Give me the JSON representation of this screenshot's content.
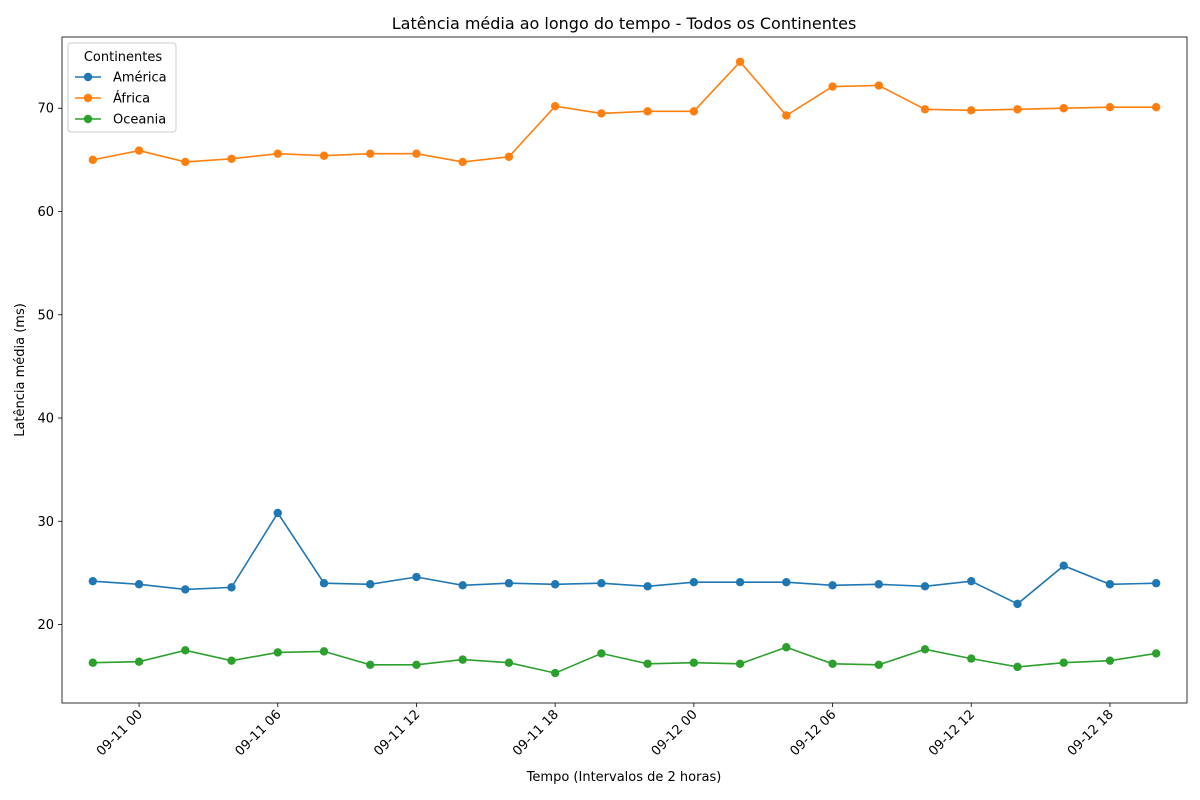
{
  "chart_data": {
    "type": "line",
    "title": "Latência média ao longo do tempo - Todos os Continentes",
    "xlabel": "Tempo (Intervalos de 2 horas)",
    "ylabel": "Latência média (ms)",
    "x": [
      "09-10 22:00",
      "09-11 00:00",
      "09-11 02:00",
      "09-11 04:00",
      "09-11 06:00",
      "09-11 08:00",
      "09-11 10:00",
      "09-11 12:00",
      "09-11 14:00",
      "09-11 16:00",
      "09-11 18:00",
      "09-11 20:00",
      "09-11 22:00",
      "09-12 00:00",
      "09-12 02:00",
      "09-12 04:00",
      "09-12 06:00",
      "09-12 08:00",
      "09-12 10:00",
      "09-12 12:00",
      "09-12 14:00",
      "09-12 16:00",
      "09-12 18:00",
      "09-12 20:00"
    ],
    "x_tick_labels": [
      "09-11 00",
      "09-11 06",
      "09-11 12",
      "09-11 18",
      "09-12 00",
      "09-12 06",
      "09-12 12",
      "09-12 18"
    ],
    "xlim": [
      "09-10 20:40",
      "09-12 21:20"
    ],
    "y_ticks": [
      20,
      30,
      40,
      50,
      60,
      70
    ],
    "ylim": [
      12.4,
      76.9
    ],
    "grid": false,
    "legend_title": "Continentes",
    "legend_position": "top-left",
    "series": [
      {
        "name": "América",
        "color": "#1f77b4",
        "values": [
          24.2,
          23.9,
          23.4,
          23.6,
          30.8,
          24.0,
          23.9,
          24.6,
          23.8,
          24.0,
          23.9,
          24.0,
          23.7,
          24.1,
          24.1,
          24.1,
          23.8,
          23.9,
          23.7,
          24.2,
          22.0,
          25.7,
          23.9,
          24.0
        ]
      },
      {
        "name": "África",
        "color": "#ff7f0e",
        "values": [
          65.0,
          65.9,
          64.8,
          65.1,
          65.6,
          65.4,
          65.6,
          65.6,
          64.8,
          65.3,
          70.2,
          69.5,
          69.7,
          69.7,
          74.5,
          69.3,
          72.1,
          72.2,
          69.9,
          69.8,
          69.9,
          70.0,
          70.1,
          70.1
        ]
      },
      {
        "name": "Oceania",
        "color": "#2ca02c",
        "values": [
          16.3,
          16.4,
          17.5,
          16.5,
          17.3,
          17.4,
          16.1,
          16.1,
          16.6,
          16.3,
          15.3,
          17.2,
          16.2,
          16.3,
          16.2,
          17.8,
          16.2,
          16.1,
          17.6,
          16.7,
          15.9,
          16.3,
          16.5,
          17.2
        ]
      }
    ]
  }
}
